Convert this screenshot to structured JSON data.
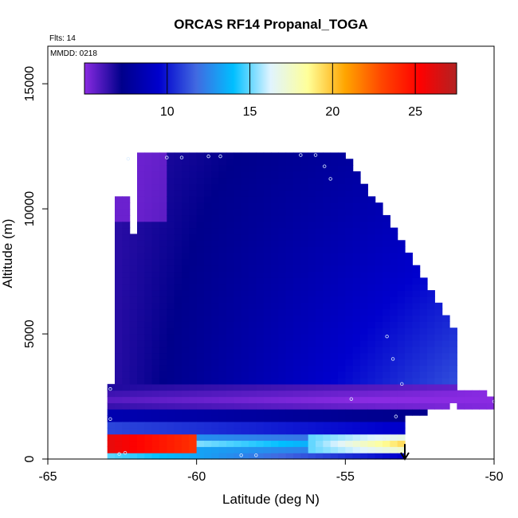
{
  "chart_data": {
    "type": "heatmap",
    "title": "ORCAS RF14 Propanal_TOGA",
    "flights_label": "Flts: 14",
    "date_label": "MMDD: 0218",
    "xlabel": "Latitude (deg N)",
    "ylabel": "Altitude (m)",
    "xlim": [
      -65,
      -50
    ],
    "ylim": [
      0,
      16500
    ],
    "x_ticks": [
      -65,
      -60,
      -55,
      -50
    ],
    "x_tick_labels": [
      "-65",
      "-60",
      "-55",
      "-50"
    ],
    "y_ticks": [
      0,
      5000,
      10000,
      15000
    ],
    "y_tick_labels": [
      "0",
      "5000",
      "10000",
      "15000"
    ],
    "colorbar": {
      "range": [
        5,
        27.5
      ],
      "ticks": [
        10,
        15,
        20,
        25
      ],
      "tick_labels": [
        "10",
        "15",
        "20",
        "25"
      ],
      "colors": [
        "#8a2be2",
        "#00008b",
        "#0000cd",
        "#4169e1",
        "#00bfff",
        "#e0f4ff",
        "#ffff99",
        "#ffa500",
        "#ff4500",
        "#ff0000",
        "#b22222"
      ]
    },
    "field_summary": {
      "upper_troposphere_value": 7,
      "band_2000_3000m_value": 5.5,
      "near_surface_value": 25
    },
    "arrow_latitude": -53
  }
}
